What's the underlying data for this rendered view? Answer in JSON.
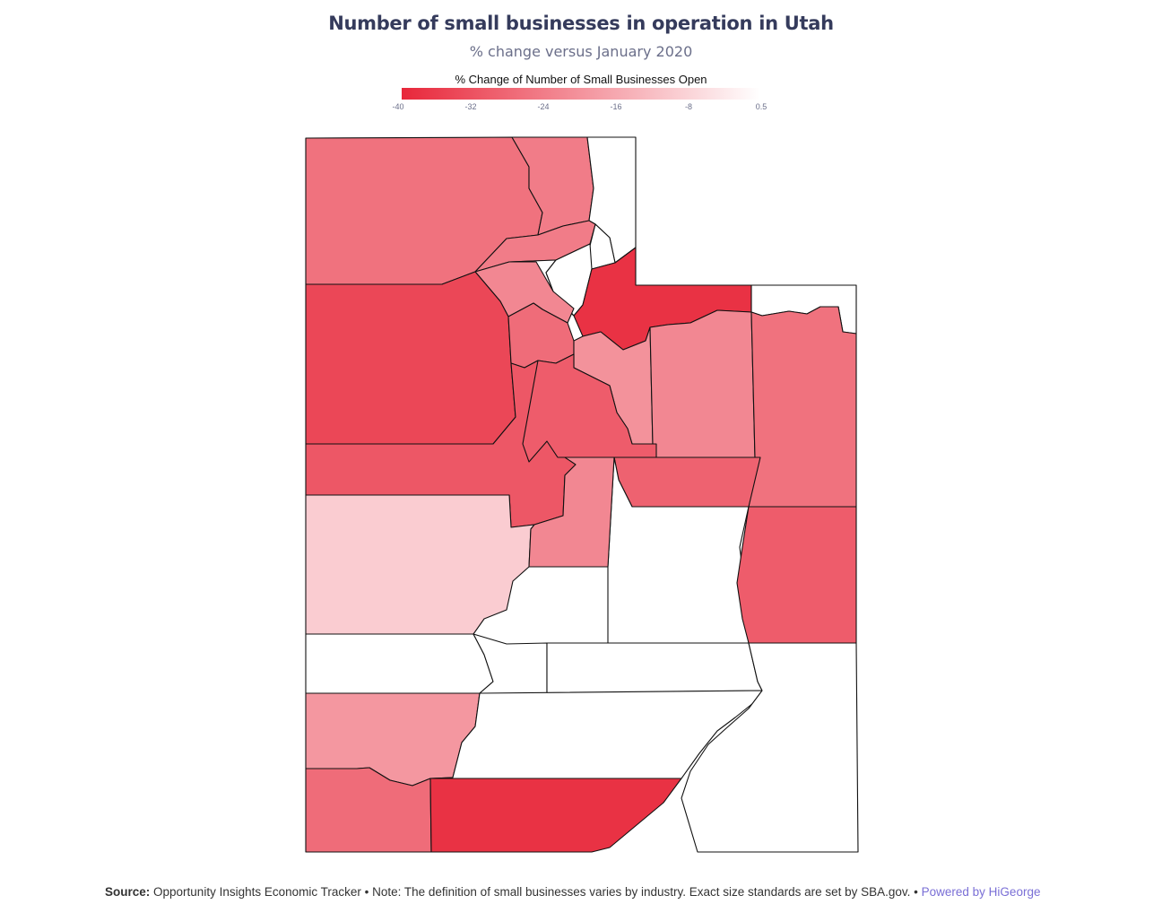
{
  "header": {
    "title": "Number of small businesses in operation in Utah",
    "subtitle": "% change versus January 2020"
  },
  "legend": {
    "title": "% Change of Number of Small Businesses Open",
    "min": -40,
    "max": 0.5,
    "ticks": [
      "-40",
      "-32",
      "-24",
      "-16",
      "-8",
      "0.5"
    ],
    "color_low": "#e8273a",
    "color_high": "#ffffff"
  },
  "map_data": {
    "type": "choropleth",
    "region": "Utah",
    "unit": "% change",
    "no_data_color": "#ffffff",
    "counties": [
      {
        "county": "Box Elder",
        "value": -26
      },
      {
        "county": "Cache",
        "value": -24
      },
      {
        "county": "Rich",
        "value": null
      },
      {
        "county": "Weber",
        "value": -24
      },
      {
        "county": "Davis",
        "value": null
      },
      {
        "county": "Morgan",
        "value": null
      },
      {
        "county": "Salt Lake",
        "value": -22
      },
      {
        "county": "Summit",
        "value": -38
      },
      {
        "county": "Daggett",
        "value": null
      },
      {
        "county": "Tooele",
        "value": -34
      },
      {
        "county": "Utah",
        "value": -27
      },
      {
        "county": "Wasatch",
        "value": -20
      },
      {
        "county": "Duchesne",
        "value": -22
      },
      {
        "county": "Uintah",
        "value": -26
      },
      {
        "county": "Juab",
        "value": -31
      },
      {
        "county": "Millard",
        "value": -9
      },
      {
        "county": "Sanpete",
        "value": -30
      },
      {
        "county": "Carbon",
        "value": -29
      },
      {
        "county": "Emery",
        "value": null
      },
      {
        "county": "Grand",
        "value": -30
      },
      {
        "county": "Sevier",
        "value": -22
      },
      {
        "county": "Beaver",
        "value": null
      },
      {
        "county": "Piute",
        "value": null
      },
      {
        "county": "Wayne",
        "value": null
      },
      {
        "county": "Iron",
        "value": -19
      },
      {
        "county": "Garfield",
        "value": null
      },
      {
        "county": "San Juan",
        "value": null
      },
      {
        "county": "Washington",
        "value": -27
      },
      {
        "county": "Kane",
        "value": -38
      }
    ]
  },
  "footer": {
    "source_label": "Source:",
    "source_text": "Opportunity Insights Economic Tracker • Note: The definition of small businesses varies by industry. Exact size standards are set by SBA.gov. •",
    "link_text": "Powered by HiGeorge"
  }
}
